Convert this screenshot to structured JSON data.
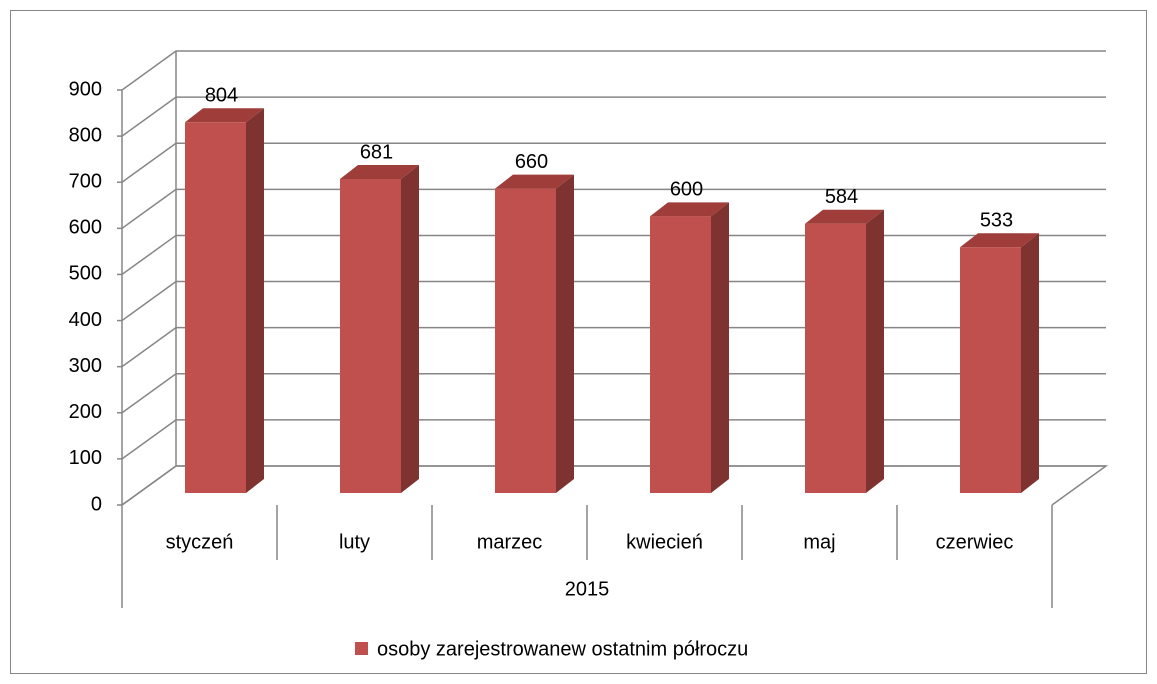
{
  "chart_data": {
    "type": "bar3d",
    "categories": [
      "styczeń",
      "luty",
      "marzec",
      "kwiecień",
      "maj",
      "czerwiec"
    ],
    "group_label": "2015",
    "series": [
      {
        "name": "osoby zarejestrowanew ostatnim półroczu",
        "color": "#c0504d",
        "values": [
          804,
          681,
          660,
          600,
          584,
          533
        ]
      }
    ],
    "ylim": [
      0,
      900
    ],
    "yticks": [
      0,
      100,
      200,
      300,
      400,
      500,
      600,
      700,
      800,
      900
    ],
    "grid": true,
    "legend": "bottom",
    "data_labels": true
  }
}
